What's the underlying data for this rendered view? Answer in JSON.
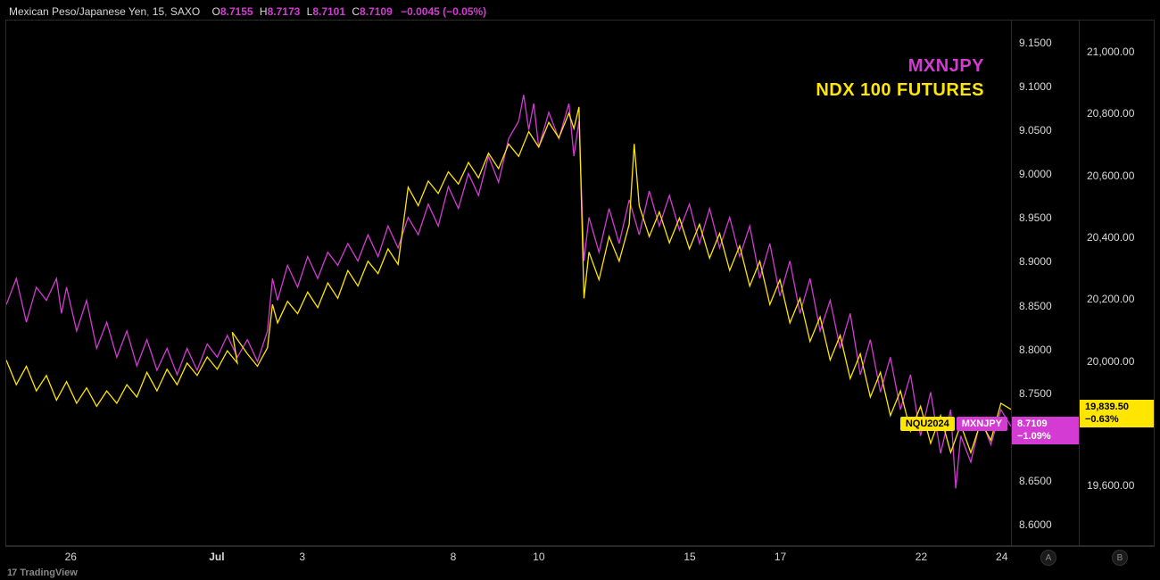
{
  "header": {
    "symbol": "Mexican Peso/Japanese Yen",
    "interval": "15",
    "broker": "SAXO",
    "ohlc": {
      "O": "8.7155",
      "H": "8.7173",
      "L": "8.7101",
      "C": "8.7109",
      "change": "−0.0045 (−0.05%)"
    },
    "text_color": "#d8d8d8",
    "val_color": "#d33bd3"
  },
  "legend": {
    "series1": {
      "label": "MXNJPY",
      "color": "#d33bd3"
    },
    "series2": {
      "label": "NDX 100 FUTURES",
      "color": "#ffe600"
    },
    "fontsize": 20,
    "weight": 800
  },
  "last_labels": {
    "left": {
      "text": "NQU2024",
      "bg": "#ffe600",
      "fg": "#000000"
    },
    "right": {
      "text": "MXNJPY",
      "bg": "#d33bd3",
      "fg": "#ffffff"
    }
  },
  "axis_a": {
    "id": "A",
    "ylim": [
      8.575,
      9.175
    ],
    "ticks": [
      9.15,
      9.1,
      9.05,
      9.0,
      8.95,
      8.9,
      8.85,
      8.8,
      8.75,
      8.65,
      8.6
    ],
    "tick_labels": [
      "9.1500",
      "9.1000",
      "9.0500",
      "9.0000",
      "8.9500",
      "8.9000",
      "8.8500",
      "8.8000",
      "8.7500",
      "8.6500",
      "8.6000"
    ],
    "current": {
      "value": 8.7109,
      "line1": "8.7109",
      "line2": "−1.09%",
      "bg": "#d33bd3",
      "fg": "#ffffff"
    }
  },
  "axis_b": {
    "id": "B",
    "ylim": [
      19400,
      21100
    ],
    "ticks": [
      21000,
      20800,
      20600,
      20400,
      20200,
      20000,
      19600
    ],
    "tick_labels": [
      "21,000.00",
      "20,800.00",
      "20,600.00",
      "20,400.00",
      "20,200.00",
      "20,000.00",
      "19,600.00"
    ],
    "current": {
      "value": 19839.5,
      "line1": "19,839.50",
      "line2": "−0.63%",
      "bg": "#ffe600",
      "fg": "#000000"
    }
  },
  "axis_x": {
    "range_days": 30,
    "ticks": [
      {
        "pos": 0.065,
        "label": "26",
        "bold": false
      },
      {
        "pos": 0.21,
        "label": "Jul",
        "bold": true
      },
      {
        "pos": 0.295,
        "label": "3",
        "bold": false
      },
      {
        "pos": 0.445,
        "label": "8",
        "bold": false
      },
      {
        "pos": 0.53,
        "label": "10",
        "bold": false
      },
      {
        "pos": 0.68,
        "label": "15",
        "bold": false
      },
      {
        "pos": 0.77,
        "label": "17",
        "bold": false
      },
      {
        "pos": 0.91,
        "label": "22",
        "bold": false
      },
      {
        "pos": 0.99,
        "label": "24",
        "bold": false
      }
    ]
  },
  "chart": {
    "type": "line",
    "background_color": "#000000",
    "border_color": "#2a2a2a",
    "line_width": 1.3,
    "series": [
      {
        "name": "MXNJPY",
        "axis": "A",
        "color": "#d33bd3",
        "data": [
          [
            0.0,
            8.85
          ],
          [
            0.01,
            8.88
          ],
          [
            0.02,
            8.83
          ],
          [
            0.03,
            8.87
          ],
          [
            0.04,
            8.855
          ],
          [
            0.05,
            8.88
          ],
          [
            0.055,
            8.84
          ],
          [
            0.06,
            8.87
          ],
          [
            0.07,
            8.82
          ],
          [
            0.08,
            8.855
          ],
          [
            0.09,
            8.8
          ],
          [
            0.1,
            8.83
          ],
          [
            0.11,
            8.79
          ],
          [
            0.12,
            8.82
          ],
          [
            0.13,
            8.78
          ],
          [
            0.14,
            8.81
          ],
          [
            0.15,
            8.775
          ],
          [
            0.16,
            8.8
          ],
          [
            0.17,
            8.77
          ],
          [
            0.18,
            8.8
          ],
          [
            0.19,
            8.775
          ],
          [
            0.2,
            8.805
          ],
          [
            0.21,
            8.79
          ],
          [
            0.22,
            8.815
          ],
          [
            0.23,
            8.79
          ],
          [
            0.24,
            8.81
          ],
          [
            0.25,
            8.785
          ],
          [
            0.26,
            8.82
          ],
          [
            0.265,
            8.88
          ],
          [
            0.27,
            8.855
          ],
          [
            0.28,
            8.895
          ],
          [
            0.29,
            8.87
          ],
          [
            0.3,
            8.905
          ],
          [
            0.31,
            8.88
          ],
          [
            0.32,
            8.91
          ],
          [
            0.33,
            8.895
          ],
          [
            0.34,
            8.92
          ],
          [
            0.35,
            8.9
          ],
          [
            0.36,
            8.93
          ],
          [
            0.37,
            8.905
          ],
          [
            0.38,
            8.94
          ],
          [
            0.39,
            8.915
          ],
          [
            0.4,
            8.95
          ],
          [
            0.41,
            8.93
          ],
          [
            0.42,
            8.965
          ],
          [
            0.43,
            8.94
          ],
          [
            0.44,
            8.985
          ],
          [
            0.45,
            8.96
          ],
          [
            0.46,
            9.0
          ],
          [
            0.47,
            8.975
          ],
          [
            0.48,
            9.02
          ],
          [
            0.49,
            8.99
          ],
          [
            0.5,
            9.04
          ],
          [
            0.51,
            9.06
          ],
          [
            0.515,
            9.09
          ],
          [
            0.52,
            9.05
          ],
          [
            0.525,
            9.08
          ],
          [
            0.53,
            9.03
          ],
          [
            0.54,
            9.07
          ],
          [
            0.55,
            9.04
          ],
          [
            0.56,
            9.08
          ],
          [
            0.565,
            9.02
          ],
          [
            0.57,
            9.06
          ],
          [
            0.575,
            8.9
          ],
          [
            0.58,
            8.95
          ],
          [
            0.59,
            8.91
          ],
          [
            0.6,
            8.96
          ],
          [
            0.61,
            8.92
          ],
          [
            0.62,
            8.97
          ],
          [
            0.63,
            8.93
          ],
          [
            0.64,
            8.98
          ],
          [
            0.65,
            8.94
          ],
          [
            0.66,
            8.975
          ],
          [
            0.67,
            8.935
          ],
          [
            0.68,
            8.965
          ],
          [
            0.69,
            8.92
          ],
          [
            0.7,
            8.96
          ],
          [
            0.71,
            8.915
          ],
          [
            0.72,
            8.95
          ],
          [
            0.73,
            8.905
          ],
          [
            0.74,
            8.94
          ],
          [
            0.75,
            8.88
          ],
          [
            0.76,
            8.92
          ],
          [
            0.77,
            8.86
          ],
          [
            0.78,
            8.9
          ],
          [
            0.79,
            8.84
          ],
          [
            0.8,
            8.88
          ],
          [
            0.81,
            8.82
          ],
          [
            0.82,
            8.855
          ],
          [
            0.83,
            8.8
          ],
          [
            0.84,
            8.84
          ],
          [
            0.85,
            8.77
          ],
          [
            0.86,
            8.81
          ],
          [
            0.87,
            8.75
          ],
          [
            0.88,
            8.79
          ],
          [
            0.89,
            8.73
          ],
          [
            0.9,
            8.77
          ],
          [
            0.91,
            8.7
          ],
          [
            0.92,
            8.75
          ],
          [
            0.93,
            8.68
          ],
          [
            0.94,
            8.73
          ],
          [
            0.945,
            8.64
          ],
          [
            0.95,
            8.7
          ],
          [
            0.96,
            8.67
          ],
          [
            0.97,
            8.72
          ],
          [
            0.98,
            8.69
          ],
          [
            0.99,
            8.73
          ],
          [
            1.0,
            8.711
          ]
        ]
      },
      {
        "name": "NQU2024",
        "axis": "B",
        "color": "#ffe600",
        "data": [
          [
            0.0,
            20000
          ],
          [
            0.01,
            19920
          ],
          [
            0.02,
            19980
          ],
          [
            0.03,
            19900
          ],
          [
            0.04,
            19950
          ],
          [
            0.05,
            19870
          ],
          [
            0.06,
            19930
          ],
          [
            0.07,
            19860
          ],
          [
            0.08,
            19910
          ],
          [
            0.09,
            19850
          ],
          [
            0.1,
            19900
          ],
          [
            0.11,
            19860
          ],
          [
            0.12,
            19920
          ],
          [
            0.13,
            19880
          ],
          [
            0.14,
            19960
          ],
          [
            0.15,
            19900
          ],
          [
            0.16,
            19970
          ],
          [
            0.17,
            19920
          ],
          [
            0.18,
            19990
          ],
          [
            0.19,
            19950
          ],
          [
            0.2,
            20010
          ],
          [
            0.21,
            19970
          ],
          [
            0.22,
            20030
          ],
          [
            0.23,
            19990
          ],
          [
            0.225,
            20090
          ],
          [
            0.24,
            20020
          ],
          [
            0.25,
            19980
          ],
          [
            0.26,
            20040
          ],
          [
            0.265,
            20180
          ],
          [
            0.27,
            20120
          ],
          [
            0.28,
            20190
          ],
          [
            0.29,
            20150
          ],
          [
            0.3,
            20220
          ],
          [
            0.31,
            20170
          ],
          [
            0.32,
            20250
          ],
          [
            0.33,
            20200
          ],
          [
            0.34,
            20290
          ],
          [
            0.35,
            20240
          ],
          [
            0.36,
            20320
          ],
          [
            0.37,
            20280
          ],
          [
            0.38,
            20360
          ],
          [
            0.39,
            20310
          ],
          [
            0.4,
            20560
          ],
          [
            0.41,
            20500
          ],
          [
            0.42,
            20580
          ],
          [
            0.43,
            20540
          ],
          [
            0.44,
            20610
          ],
          [
            0.45,
            20570
          ],
          [
            0.46,
            20640
          ],
          [
            0.47,
            20590
          ],
          [
            0.48,
            20670
          ],
          [
            0.49,
            20620
          ],
          [
            0.5,
            20700
          ],
          [
            0.51,
            20660
          ],
          [
            0.52,
            20740
          ],
          [
            0.53,
            20690
          ],
          [
            0.54,
            20770
          ],
          [
            0.55,
            20720
          ],
          [
            0.56,
            20800
          ],
          [
            0.565,
            20750
          ],
          [
            0.57,
            20820
          ],
          [
            0.575,
            20200
          ],
          [
            0.58,
            20350
          ],
          [
            0.59,
            20260
          ],
          [
            0.6,
            20400
          ],
          [
            0.61,
            20320
          ],
          [
            0.62,
            20440
          ],
          [
            0.625,
            20700
          ],
          [
            0.63,
            20500
          ],
          [
            0.64,
            20400
          ],
          [
            0.65,
            20480
          ],
          [
            0.66,
            20380
          ],
          [
            0.67,
            20460
          ],
          [
            0.68,
            20360
          ],
          [
            0.69,
            20440
          ],
          [
            0.7,
            20330
          ],
          [
            0.71,
            20410
          ],
          [
            0.72,
            20290
          ],
          [
            0.73,
            20370
          ],
          [
            0.74,
            20240
          ],
          [
            0.75,
            20320
          ],
          [
            0.76,
            20180
          ],
          [
            0.77,
            20260
          ],
          [
            0.78,
            20120
          ],
          [
            0.79,
            20200
          ],
          [
            0.8,
            20060
          ],
          [
            0.81,
            20140
          ],
          [
            0.82,
            20000
          ],
          [
            0.83,
            20080
          ],
          [
            0.84,
            19940
          ],
          [
            0.85,
            20020
          ],
          [
            0.86,
            19880
          ],
          [
            0.87,
            19960
          ],
          [
            0.88,
            19820
          ],
          [
            0.89,
            19900
          ],
          [
            0.9,
            19770
          ],
          [
            0.91,
            19850
          ],
          [
            0.92,
            19730
          ],
          [
            0.93,
            19820
          ],
          [
            0.94,
            19700
          ],
          [
            0.95,
            19790
          ],
          [
            0.96,
            19700
          ],
          [
            0.97,
            19800
          ],
          [
            0.98,
            19740
          ],
          [
            0.99,
            19860
          ],
          [
            1.0,
            19840
          ]
        ]
      }
    ]
  },
  "watermark": {
    "logo": "17",
    "text": "TradingView"
  },
  "scale_buttons": {
    "a": "A",
    "b": "B"
  }
}
